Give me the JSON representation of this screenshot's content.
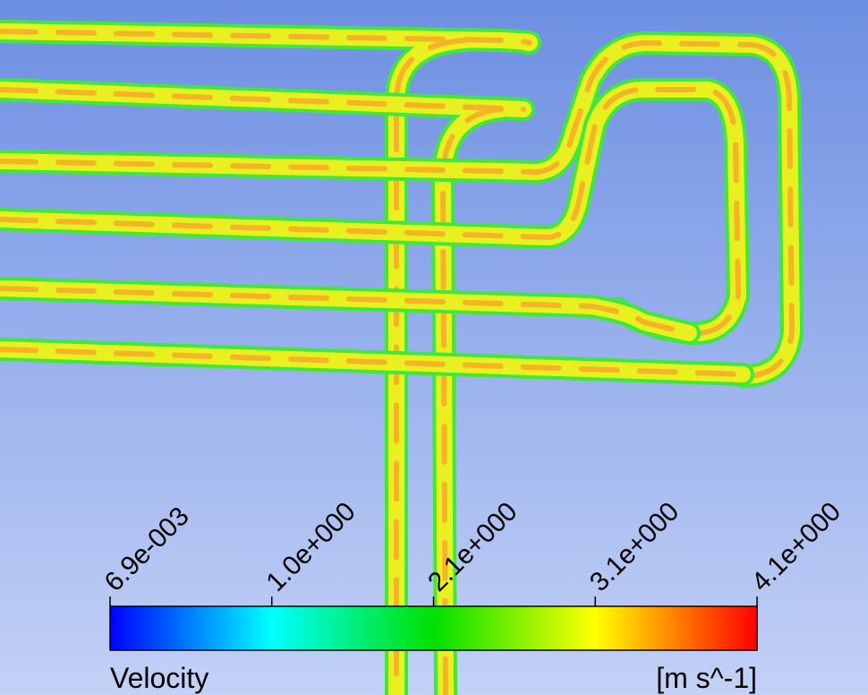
{
  "legend": {
    "title": "Velocity",
    "unit": "[m s^-1]",
    "ticks": [
      "6.9e-003",
      "1.0e+000",
      "2.1e+000",
      "3.1e+000",
      "4.1e+000"
    ]
  }
}
